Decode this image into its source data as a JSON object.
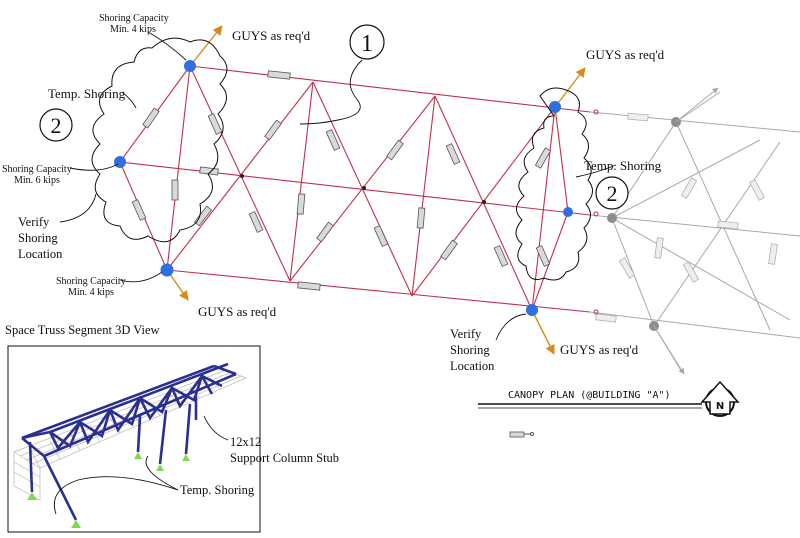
{
  "labels": {
    "bubble_1": "1",
    "bubble_2_left": "2",
    "bubble_2_right": "2",
    "guys_top_left": "GUYS as req'd",
    "guys_top_right": "GUYS as req'd",
    "guys_bottom_left": "GUYS as req'd",
    "guys_bottom_right": "GUYS as req'd",
    "shoring_cap_top_line1": "Shoring Capacity",
    "shoring_cap_top_line2": "Min. 4 kips",
    "shoring_cap_mid_line1": "Shoring Capacity",
    "shoring_cap_mid_line2": "Min. 6 kips",
    "shoring_cap_bot_line1": "Shoring Capacity",
    "shoring_cap_bot_line2": "Min. 4 kips",
    "temp_shoring_left": "Temp. Shoring",
    "temp_shoring_right": "Temp. Shoring",
    "verify_left_line1": "Verify",
    "verify_left_line2": "Shoring",
    "verify_left_line3": "Location",
    "verify_right_line1": "Verify",
    "verify_right_line2": "Shoring",
    "verify_right_line3": "Location",
    "plan_title": "CANOPY PLAN (@BUILDING \"A\")",
    "north_marker": "N",
    "view3d_title": "Space Truss Segment 3D View",
    "column_stub_line1": "12x12",
    "column_stub_line2": "Support Column Stub",
    "temp_shoring_3d": "Temp. Shoring"
  },
  "colors": {
    "truss_member": "#c0304a",
    "support_node": "#2f6fe0",
    "guy_arrow": "#d98a1a",
    "adjacent_truss": "#a8a8a8",
    "truss_3d": "#2b2f8f",
    "shoring_3d": "#7ed957"
  },
  "icons": {
    "north_arrow": "north-arrow-icon",
    "turnbuckle": "turnbuckle-icon"
  }
}
